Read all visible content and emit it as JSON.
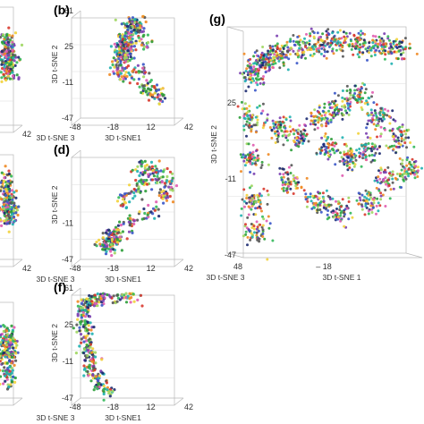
{
  "figure": {
    "colors": [
      "#2e9e3a",
      "#3a56c8",
      "#f08a24",
      "#d8382e",
      "#7a3fb0",
      "#1fb0b0",
      "#f2d23a",
      "#33b85a",
      "#1c2a70",
      "#9ed660",
      "#e05cb0",
      "#555555"
    ]
  },
  "chart_data": [
    {
      "panel": "a",
      "type": "scatter",
      "partial": true,
      "xticks": [
        "42"
      ],
      "yticks": [],
      "points": [
        [
          -2,
          15
        ],
        [
          0,
          22
        ],
        [
          3,
          10
        ],
        [
          -4,
          5
        ],
        [
          2,
          0
        ],
        [
          5,
          18
        ],
        [
          -1,
          -5
        ],
        [
          6,
          8
        ],
        [
          1,
          28
        ],
        [
          -3,
          12
        ]
      ]
    },
    {
      "panel": "b",
      "type": "scatter",
      "title": "(b)",
      "xlabel": "3D t-SNE1",
      "ylabel": "3D t-SNE 2",
      "zlabel": "3D t-SNE 3",
      "xticks": [
        "-48",
        "-18",
        "12",
        "42"
      ],
      "yticks": [
        "61",
        "25",
        "-11",
        "-47"
      ],
      "xlim": [
        -48,
        42
      ],
      "ylim": [
        -47,
        61
      ],
      "points": [
        [
          -13,
          25
        ],
        [
          -11,
          30
        ],
        [
          -9,
          35
        ],
        [
          -12,
          20
        ],
        [
          -14,
          15
        ],
        [
          -10,
          10
        ],
        [
          -8,
          18
        ],
        [
          -6,
          40
        ],
        [
          -4,
          45
        ],
        [
          -2,
          48
        ],
        [
          0,
          50
        ],
        [
          2,
          45
        ],
        [
          -15,
          5
        ],
        [
          -5,
          22
        ],
        [
          5,
          0
        ],
        [
          10,
          -15
        ],
        [
          15,
          -20
        ],
        [
          -12,
          -5
        ],
        [
          20,
          -25
        ],
        [
          8,
          30
        ]
      ]
    },
    {
      "panel": "c",
      "type": "scatter",
      "partial": true,
      "xticks": [
        "42"
      ],
      "yticks": [],
      "points": [
        [
          -2,
          15
        ],
        [
          0,
          8
        ],
        [
          3,
          0
        ],
        [
          -4,
          22
        ],
        [
          2,
          -6
        ],
        [
          5,
          12
        ],
        [
          -1,
          30
        ],
        [
          6,
          -2
        ],
        [
          1,
          -10
        ],
        [
          -3,
          4
        ]
      ]
    },
    {
      "panel": "d",
      "type": "scatter",
      "title": "(d)",
      "xlabel": "3D t-SNE1",
      "ylabel": "3D t-SNE 2",
      "zlabel": "3D t-SNE 3",
      "xticks": [
        "-48",
        "-18",
        "12",
        "42"
      ],
      "yticks": [
        "-11",
        "-47"
      ],
      "xlim": [
        -48,
        42
      ],
      "ylim": [
        -47,
        61
      ],
      "points": [
        [
          -22,
          -30
        ],
        [
          -20,
          -25
        ],
        [
          -24,
          -35
        ],
        [
          -18,
          -20
        ],
        [
          -16,
          -28
        ],
        [
          -26,
          -32
        ],
        [
          0,
          20
        ],
        [
          8,
          30
        ],
        [
          14,
          40
        ],
        [
          20,
          35
        ],
        [
          5,
          45
        ],
        [
          -10,
          10
        ],
        [
          25,
          15
        ],
        [
          12,
          0
        ],
        [
          -5,
          -10
        ],
        [
          30,
          30
        ]
      ]
    },
    {
      "panel": "e",
      "type": "scatter",
      "partial": true,
      "xticks": [],
      "yticks": [],
      "points": [
        [
          -2,
          15
        ],
        [
          0,
          8
        ],
        [
          3,
          0
        ],
        [
          -4,
          22
        ],
        [
          2,
          -6
        ],
        [
          5,
          12
        ],
        [
          -1,
          -20
        ],
        [
          6,
          -30
        ],
        [
          1,
          -10
        ],
        [
          -3,
          4
        ]
      ]
    },
    {
      "panel": "f",
      "type": "scatter",
      "title": "(f)",
      "xlabel": "3D t-SNE1",
      "ylabel": "3D t-SNE 2",
      "zlabel": "3D t-SNE 3",
      "xticks": [
        "-48",
        "-18",
        "12",
        "42"
      ],
      "yticks": [
        "61",
        "25",
        "-11",
        "-47"
      ],
      "xlim": [
        -48,
        42
      ],
      "ylim": [
        -47,
        61
      ],
      "points": [
        [
          -44,
          40
        ],
        [
          -42,
          45
        ],
        [
          -40,
          48
        ],
        [
          -36,
          50
        ],
        [
          -30,
          52
        ],
        [
          -20,
          54
        ],
        [
          -10,
          55
        ],
        [
          0,
          55
        ],
        [
          -45,
          30
        ],
        [
          -44,
          20
        ],
        [
          -43,
          10
        ],
        [
          -42,
          0
        ],
        [
          -40,
          -10
        ],
        [
          -38,
          -20
        ],
        [
          -35,
          -25
        ],
        [
          -30,
          -35
        ],
        [
          -25,
          -40
        ]
      ]
    },
    {
      "panel": "g",
      "type": "scatter",
      "title": "(g)",
      "xlabel": "3D t-SNE 1",
      "ylabel": "3D t-SNE 2",
      "zlabel": "3D t-SNE 3",
      "xticks": [
        "48",
        "– 18"
      ],
      "yticks": [
        "25",
        "-11",
        "-47"
      ],
      "xlim": [
        -48,
        42
      ],
      "ylim": [
        -47,
        61
      ],
      "points": [
        [
          -44,
          40
        ],
        [
          -40,
          45
        ],
        [
          -35,
          48
        ],
        [
          -30,
          50
        ],
        [
          -20,
          53
        ],
        [
          -10,
          55
        ],
        [
          0,
          56
        ],
        [
          10,
          55
        ],
        [
          20,
          54
        ],
        [
          30,
          52
        ],
        [
          -44,
          20
        ],
        [
          -44,
          0
        ],
        [
          -43,
          -20
        ],
        [
          -42,
          -35
        ],
        [
          -20,
          10
        ],
        [
          -10,
          20
        ],
        [
          0,
          25
        ],
        [
          10,
          30
        ],
        [
          20,
          20
        ],
        [
          30,
          10
        ],
        [
          25,
          -10
        ],
        [
          15,
          -20
        ],
        [
          0,
          -25
        ],
        [
          -10,
          -20
        ],
        [
          -25,
          -10
        ],
        [
          5,
          0
        ],
        [
          15,
          5
        ],
        [
          -5,
          5
        ],
        [
          35,
          -5
        ],
        [
          -30,
          15
        ]
      ]
    }
  ]
}
